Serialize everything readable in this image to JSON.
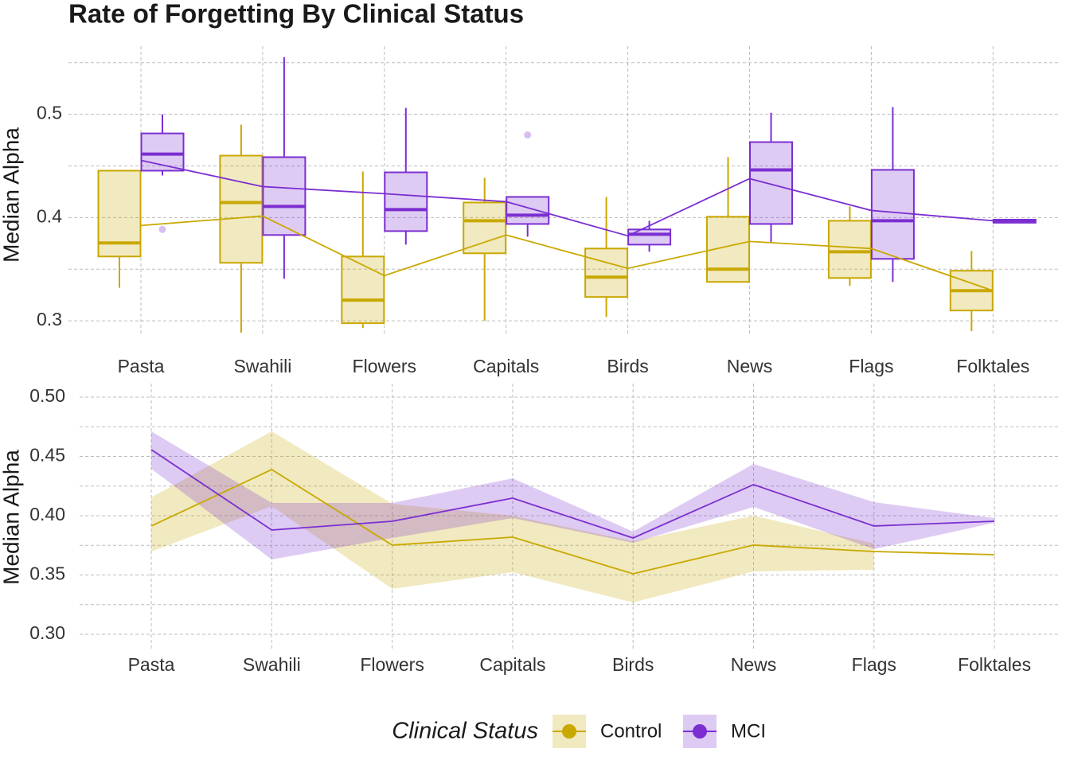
{
  "chart_data": [
    {
      "type": "boxplot",
      "title": "Rate of Forgetting By Clinical Status",
      "y_label": "Median Alpha",
      "categories": [
        "Pasta",
        "Swahili",
        "Flowers",
        "Capitals",
        "Birds",
        "News",
        "Flags",
        "Folktales"
      ],
      "ylim": [
        0.287,
        0.566
      ],
      "yticks": [
        0.3,
        0.4,
        0.5
      ],
      "grid": true,
      "legend_title": "Clinical Status",
      "legend_position": "bottom",
      "series": [
        {
          "name": "Control",
          "color": "#c9a800",
          "whisker_low": [
            0.332,
            0.2885,
            0.293,
            0.3,
            0.3038,
            0.3377,
            0.3338,
            0.29
          ],
          "q1": [
            0.3623,
            0.3562,
            0.2977,
            0.3654,
            0.3231,
            0.3377,
            0.3415,
            0.31
          ],
          "median": [
            0.3754,
            0.4146,
            0.32,
            0.3969,
            0.3423,
            0.35,
            0.3669,
            0.3292
          ],
          "q3": [
            0.4454,
            0.46,
            0.3623,
            0.4146,
            0.37,
            0.4008,
            0.3969,
            0.3485
          ],
          "whisker_high": [
            0.4454,
            0.49,
            0.4446,
            0.4385,
            0.42,
            0.4585,
            0.4108,
            0.3677
          ],
          "outliers": [
            [],
            [],
            [],
            [],
            [],
            [],
            [],
            []
          ],
          "line": [
            0.3923,
            0.4015,
            0.3438,
            0.3831,
            0.3508,
            0.3769,
            0.37,
            0.3292
          ]
        },
        {
          "name": "MCI",
          "color": "#7b2fd1",
          "whisker_low": [
            0.4408,
            0.3408,
            0.3738,
            0.3815,
            0.3669,
            0.3762,
            0.3377,
            0.395
          ],
          "q1": [
            0.4454,
            0.3831,
            0.3869,
            0.3938,
            0.3738,
            0.3938,
            0.36,
            0.395
          ],
          "median": [
            0.4615,
            0.4108,
            0.4077,
            0.4023,
            0.3838,
            0.4462,
            0.3969,
            0.3962
          ],
          "q3": [
            0.4815,
            0.4585,
            0.4438,
            0.42,
            0.3885,
            0.4731,
            0.4462,
            0.398
          ],
          "whisker_high": [
            0.5,
            0.5554,
            0.5062,
            0.42,
            0.3969,
            0.5015,
            0.5069,
            0.398
          ],
          "outliers": [
            [
              0.3885
            ],
            [],
            [],
            [
              0.48
            ],
            [],
            [],
            [],
            []
          ],
          "line": [
            0.4554,
            0.43,
            0.4231,
            0.4154,
            0.3823,
            0.4377,
            0.4069,
            0.3969
          ]
        }
      ]
    },
    {
      "type": "ribbon",
      "y_label": "Median Alpha",
      "categories": [
        "Pasta",
        "Swahili",
        "Flowers",
        "Capitals",
        "Birds",
        "News",
        "Flags",
        "Folktales"
      ],
      "ylim": [
        0.2879,
        0.5114
      ],
      "yticks": [
        {
          "value": 0.3,
          "label": "0.30"
        },
        0.35,
        {
          "value": 0.4,
          "label": "0.40"
        },
        0.45,
        {
          "value": 0.5,
          "label": "0.50"
        }
      ],
      "grid": true,
      "series": [
        {
          "color": "#c9a800",
          "values": [
            0.3913,
            0.4389,
            0.3752,
            0.3819,
            0.351,
            0.3752,
            0.3698,
            0.3671
          ],
          "upper": [
            0.4154,
            0.4711,
            0.41,
            0.4,
            0.3785,
            0.4,
            0.3765,
            null
          ],
          "lower": [
            0.3698,
            0.408,
            0.3383,
            0.3523,
            0.3268,
            0.353,
            0.3544,
            null
          ]
        },
        {
          "color": "#7b2fd1",
          "values": [
            0.4557,
            0.3879,
            0.3953,
            0.4148,
            0.3812,
            0.4262,
            0.3913,
            0.3953
          ],
          "upper": [
            0.4711,
            0.4107,
            0.4107,
            0.4315,
            0.3866,
            0.4436,
            0.4114,
            0.398
          ],
          "lower": [
            0.4396,
            0.3631,
            0.3812,
            0.398,
            0.3772,
            0.4074,
            0.3718,
            0.394
          ]
        }
      ]
    }
  ]
}
